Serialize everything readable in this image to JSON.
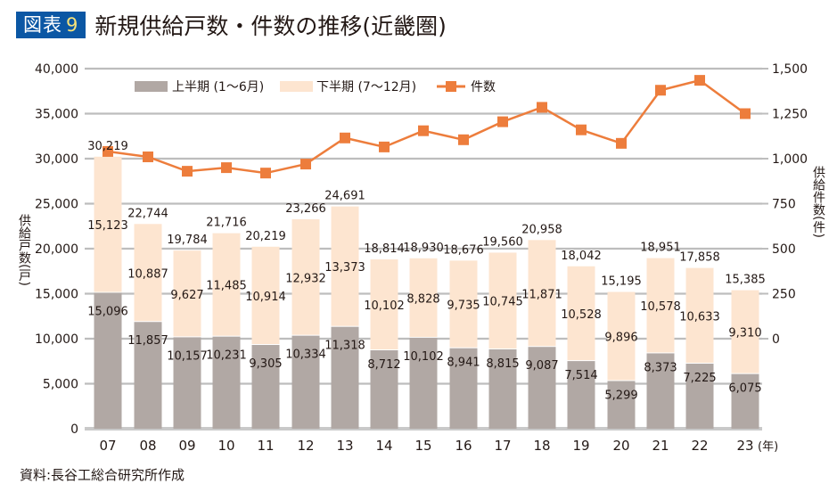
{
  "header": {
    "badge_label": "図表",
    "badge_number": "9",
    "title": "新規供給戸数・件数の推移(近畿圏)"
  },
  "source": "資料:長谷工総合研究所作成",
  "chart_data": {
    "type": "bar",
    "stacked": true,
    "title": "新規供給戸数・件数の推移(近畿圏)",
    "categories": [
      "07",
      "08",
      "09",
      "10",
      "11",
      "12",
      "13",
      "14",
      "15",
      "16",
      "17",
      "18",
      "19",
      "20",
      "21",
      "22",
      "23"
    ],
    "x_unit_label": "(年)",
    "series": [
      {
        "name": "上半期 (1〜6月)",
        "kind": "bar",
        "axis": "left",
        "color": "#b1a8a4",
        "values": [
          15096,
          11857,
          10157,
          10231,
          9305,
          10334,
          11318,
          8712,
          10102,
          8941,
          8815,
          9087,
          7514,
          5299,
          8373,
          7225,
          6075
        ]
      },
      {
        "name": "下半期 (7〜12月)",
        "kind": "bar",
        "axis": "left",
        "color": "#fde5d0",
        "values": [
          15123,
          10887,
          9627,
          11485,
          10914,
          12932,
          13373,
          10102,
          8828,
          9735,
          10745,
          11871,
          10528,
          9896,
          10578,
          10633,
          9310
        ]
      },
      {
        "name": "件数",
        "kind": "line",
        "axis": "right",
        "color": "#ed7d3c",
        "values": [
          1040,
          1010,
          930,
          950,
          920,
          970,
          1115,
          1065,
          1155,
          1105,
          1205,
          1285,
          1160,
          1085,
          1380,
          1435,
          1250
        ]
      }
    ],
    "totals": [
      30219,
      22744,
      19784,
      21716,
      20219,
      23266,
      24691,
      18814,
      18930,
      18676,
      19560,
      20958,
      18042,
      15195,
      18951,
      17858,
      15385
    ],
    "left_axis": {
      "label": "供給戸数(戸)",
      "range": [
        0,
        40000
      ],
      "ticks": [
        0,
        5000,
        10000,
        15000,
        20000,
        25000,
        30000,
        35000,
        40000
      ],
      "tick_labels": [
        "0",
        "5,000",
        "10,000",
        "15,000",
        "20,000",
        "25,000",
        "30,000",
        "35,000",
        "40,000"
      ]
    },
    "right_axis": {
      "label": "供給件数(件)",
      "range": [
        -500,
        1500
      ],
      "ticks": [
        0,
        250,
        500,
        750,
        1000,
        1250,
        1500
      ],
      "tick_labels": [
        "0",
        "250",
        "500",
        "750",
        "1,000",
        "1,250",
        "1,500"
      ]
    },
    "grid": true,
    "legend": {
      "position": "top-center",
      "entries": [
        "上半期 (1〜6月)",
        "下半期 (7〜12月)",
        "件数"
      ]
    }
  }
}
